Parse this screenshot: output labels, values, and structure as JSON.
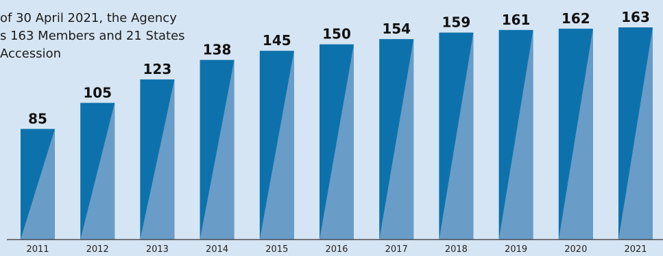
{
  "annotation": {
    "lines": [
      "of 30 April 2021, the Agency",
      "s 163 Members and 21 States",
      "Accession"
    ]
  },
  "chart_data": {
    "type": "bar",
    "title": "",
    "xlabel": "",
    "ylabel": "",
    "categories": [
      "2011",
      "2012",
      "2013",
      "2014",
      "2015",
      "2016",
      "2017",
      "2018",
      "2019",
      "2020",
      "2021"
    ],
    "values": [
      85,
      105,
      123,
      138,
      145,
      150,
      154,
      159,
      161,
      162,
      163
    ],
    "ylim": [
      0,
      163
    ],
    "grid": false,
    "legend": "none",
    "colors": {
      "bar_dark": "#0d72ac",
      "bar_light": "#6a9cc8",
      "axis": "#333333"
    }
  }
}
